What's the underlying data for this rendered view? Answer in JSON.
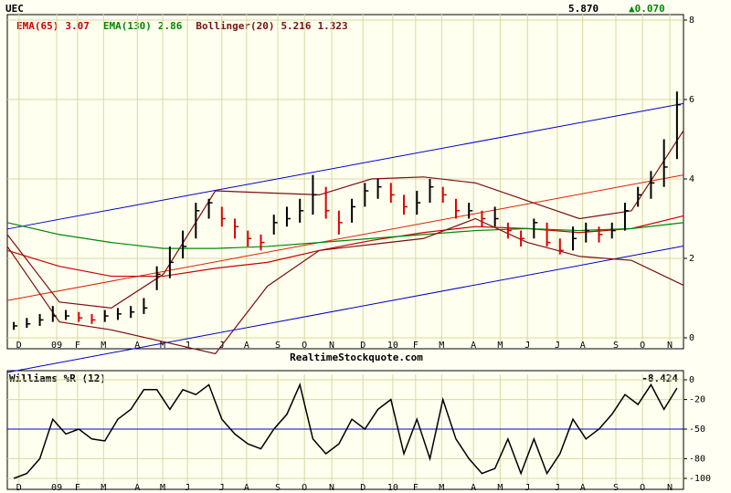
{
  "chart_data": [
    {
      "type": "ohlc",
      "symbol": "UEC",
      "price": {
        "value": 5.87,
        "label": "5.870"
      },
      "change": {
        "value": 0.07,
        "label": "▲0.070"
      },
      "footer": "RealtimeStockquote.com",
      "xlim": [
        0,
        104
      ],
      "xticks": [
        {
          "value": 1.8,
          "label": "D"
        },
        {
          "value": 7.6,
          "label": "09"
        },
        {
          "value": 10.8,
          "label": "F"
        },
        {
          "value": 14.8,
          "label": "M"
        },
        {
          "value": 20,
          "label": "A"
        },
        {
          "value": 23.9,
          "label": "M"
        },
        {
          "value": 27.7,
          "label": "J"
        },
        {
          "value": 33,
          "label": "J"
        },
        {
          "value": 36.8,
          "label": "A"
        },
        {
          "value": 41.6,
          "label": "S"
        },
        {
          "value": 45.7,
          "label": "O"
        },
        {
          "value": 49.9,
          "label": "N"
        },
        {
          "value": 54.7,
          "label": "D"
        },
        {
          "value": 59.3,
          "label": "10"
        },
        {
          "value": 62.8,
          "label": "F"
        },
        {
          "value": 66.8,
          "label": "M"
        },
        {
          "value": 71.7,
          "label": "A"
        },
        {
          "value": 75.8,
          "label": "M"
        },
        {
          "value": 80,
          "label": "J"
        },
        {
          "value": 84.6,
          "label": "J"
        },
        {
          "value": 88.5,
          "label": "A"
        },
        {
          "value": 93.6,
          "label": "S"
        },
        {
          "value": 97.7,
          "label": "O"
        },
        {
          "value": 101.9,
          "label": "N"
        }
      ],
      "ylim": [
        0,
        8
      ],
      "yticks": [
        0,
        2,
        4,
        6,
        8
      ],
      "grid": true,
      "up_color": "#000000",
      "down_color": "#dd0000",
      "x": [
        1,
        3,
        5,
        7,
        9,
        11,
        13,
        15,
        17,
        19,
        21,
        23,
        25,
        27,
        29,
        31,
        33,
        35,
        37,
        39,
        41,
        43,
        45,
        47,
        49,
        51,
        53,
        55,
        57,
        59,
        61,
        63,
        65,
        67,
        69,
        71,
        73,
        75,
        77,
        79,
        81,
        83,
        85,
        87,
        89,
        91,
        93,
        95,
        97,
        99,
        101,
        103
      ],
      "high": [
        0.4,
        0.5,
        0.6,
        0.8,
        0.7,
        0.65,
        0.6,
        0.7,
        0.75,
        0.8,
        1.0,
        1.8,
        2.3,
        2.7,
        3.4,
        3.5,
        3.3,
        3.0,
        2.7,
        2.6,
        3.1,
        3.3,
        3.5,
        4.1,
        3.8,
        3.2,
        3.5,
        3.9,
        4.0,
        3.9,
        3.6,
        3.7,
        4.0,
        3.8,
        3.5,
        3.4,
        3.2,
        3.3,
        2.9,
        2.7,
        3.0,
        2.9,
        2.5,
        2.8,
        2.9,
        2.8,
        2.9,
        3.4,
        3.8,
        4.2,
        5.0,
        6.2
      ],
      "low": [
        0.2,
        0.25,
        0.3,
        0.4,
        0.45,
        0.4,
        0.35,
        0.4,
        0.45,
        0.5,
        0.6,
        1.2,
        1.5,
        2.0,
        2.5,
        3.0,
        2.8,
        2.5,
        2.3,
        2.2,
        2.6,
        2.8,
        2.9,
        3.1,
        3.0,
        2.6,
        2.9,
        3.3,
        3.5,
        3.4,
        3.1,
        3.1,
        3.4,
        3.4,
        3.0,
        3.0,
        2.8,
        2.8,
        2.5,
        2.3,
        2.5,
        2.3,
        2.1,
        2.2,
        2.4,
        2.4,
        2.5,
        2.7,
        3.3,
        3.5,
        3.8,
        4.5
      ],
      "close": [
        0.3,
        0.35,
        0.45,
        0.55,
        0.55,
        0.5,
        0.45,
        0.55,
        0.6,
        0.65,
        0.75,
        1.6,
        1.9,
        2.3,
        3.2,
        3.4,
        3.0,
        2.8,
        2.5,
        2.4,
        2.9,
        3.0,
        3.2,
        3.6,
        3.2,
        2.9,
        3.3,
        3.7,
        3.8,
        3.6,
        3.3,
        3.4,
        3.8,
        3.6,
        3.2,
        3.2,
        3.0,
        3.0,
        2.7,
        2.5,
        2.9,
        2.4,
        2.2,
        2.5,
        2.7,
        2.6,
        2.7,
        3.2,
        3.6,
        3.9,
        4.3,
        5.87
      ],
      "indicators": [
        {
          "name": "EMA(65)",
          "last": 3.07,
          "color": "#cc0000",
          "x": [
            0,
            8,
            16,
            24,
            32,
            40,
            48,
            56,
            64,
            72,
            80,
            88,
            96,
            104
          ],
          "values": [
            2.2,
            1.8,
            1.55,
            1.55,
            1.75,
            1.9,
            2.2,
            2.45,
            2.65,
            2.8,
            2.75,
            2.65,
            2.75,
            3.07
          ]
        },
        {
          "name": "EMA(130)",
          "last": 2.86,
          "color": "#008800",
          "x": [
            0,
            8,
            16,
            24,
            32,
            40,
            48,
            56,
            64,
            72,
            80,
            88,
            96,
            104
          ],
          "values": [
            2.9,
            2.6,
            2.4,
            2.25,
            2.25,
            2.3,
            2.4,
            2.5,
            2.6,
            2.7,
            2.75,
            2.7,
            2.75,
            2.9
          ]
        },
        {
          "name": "Bollinger(20)",
          "last": [
            5.216,
            1.323
          ],
          "color": "#7a1010",
          "x": [
            0,
            8,
            16,
            24,
            32,
            40,
            48,
            56,
            64,
            72,
            80,
            88,
            96,
            104
          ],
          "upper": [
            2.6,
            0.9,
            0.75,
            1.6,
            3.7,
            3.65,
            3.6,
            4.0,
            4.05,
            3.9,
            3.45,
            3.0,
            3.2,
            5.216
          ],
          "lower": [
            2.3,
            0.4,
            0.2,
            -0.1,
            -0.4,
            1.3,
            2.2,
            2.35,
            2.5,
            3.0,
            2.4,
            2.05,
            1.95,
            1.323
          ]
        }
      ],
      "channel": {
        "x": [
          0,
          104
        ],
        "outer_color": "#0000cc",
        "middle_color": "#dd2200",
        "upper": [
          2.74,
          5.9
        ],
        "middle": [
          0.94,
          4.1
        ],
        "lower": [
          -0.87,
          2.31
        ]
      }
    },
    {
      "type": "line",
      "title": "Williams %R (12)",
      "last": -8.424,
      "color": "#000000",
      "xlim": [
        0,
        104
      ],
      "xticks": [
        {
          "value": 1.8,
          "label": "D"
        },
        {
          "value": 7.6,
          "label": "09"
        },
        {
          "value": 10.8,
          "label": "F"
        },
        {
          "value": 14.8,
          "label": "M"
        },
        {
          "value": 20,
          "label": "A"
        },
        {
          "value": 23.9,
          "label": "M"
        },
        {
          "value": 27.7,
          "label": "J"
        },
        {
          "value": 33,
          "label": "J"
        },
        {
          "value": 36.8,
          "label": "A"
        },
        {
          "value": 41.6,
          "label": "S"
        },
        {
          "value": 45.7,
          "label": "O"
        },
        {
          "value": 49.9,
          "label": "N"
        },
        {
          "value": 54.7,
          "label": "D"
        },
        {
          "value": 59.3,
          "label": "10"
        },
        {
          "value": 62.8,
          "label": "F"
        },
        {
          "value": 66.8,
          "label": "M"
        },
        {
          "value": 71.7,
          "label": "A"
        },
        {
          "value": 75.8,
          "label": "M"
        },
        {
          "value": 80,
          "label": "J"
        },
        {
          "value": 84.6,
          "label": "J"
        },
        {
          "value": 88.5,
          "label": "A"
        },
        {
          "value": 93.6,
          "label": "S"
        },
        {
          "value": 97.7,
          "label": "O"
        },
        {
          "value": 101.9,
          "label": "N"
        }
      ],
      "ylim": [
        -100,
        0
      ],
      "yticks": [
        0,
        -20,
        -50,
        -80,
        -100
      ],
      "reference_line": {
        "value": -50,
        "color": "#0000cc"
      },
      "x": [
        1,
        3,
        5,
        7,
        9,
        11,
        13,
        15,
        17,
        19,
        21,
        23,
        25,
        27,
        29,
        31,
        33,
        35,
        37,
        39,
        41,
        43,
        45,
        47,
        49,
        51,
        53,
        55,
        57,
        59,
        61,
        63,
        65,
        67,
        69,
        71,
        73,
        75,
        77,
        79,
        81,
        83,
        85,
        87,
        89,
        91,
        93,
        95,
        97,
        99,
        101,
        103
      ],
      "values": [
        -100,
        -95,
        -80,
        -40,
        -55,
        -50,
        -60,
        -62,
        -40,
        -30,
        -10,
        -10,
        -30,
        -10,
        -15,
        -5,
        -40,
        -55,
        -65,
        -70,
        -50,
        -35,
        -5,
        -60,
        -75,
        -65,
        -40,
        -50,
        -30,
        -20,
        -75,
        -40,
        -80,
        -20,
        -60,
        -80,
        -95,
        -90,
        -60,
        -95,
        -60,
        -95,
        -75,
        -40,
        -60,
        -50,
        -35,
        -15,
        -25,
        -5,
        -30,
        -8.424
      ]
    }
  ]
}
